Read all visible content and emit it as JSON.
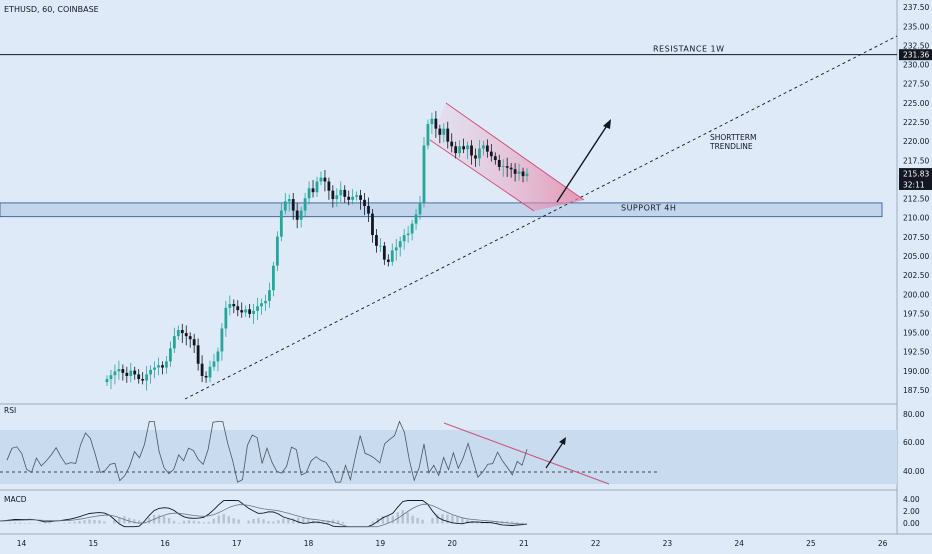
{
  "header": {
    "symbol_line": "ETHUSD, 60, COINBASE"
  },
  "price_axis": {
    "ticks": [
      187.5,
      190.0,
      192.5,
      195.0,
      197.5,
      200.0,
      202.5,
      205.0,
      207.5,
      210.0,
      212.5,
      215.0,
      217.5,
      220.0,
      222.5,
      225.0,
      227.5,
      230.0,
      232.5,
      235.0,
      237.5
    ],
    "badges": [
      {
        "label": "231.36",
        "value": 231.36,
        "color": "#131722",
        "text_color": "#ffffff"
      },
      {
        "label": "215.83",
        "value": 215.83,
        "color": "#131722",
        "text_color": "#ffffff"
      },
      {
        "label": "32:11",
        "value": 214.8,
        "color": "#131722",
        "text_color": "#ffffff"
      }
    ]
  },
  "time_axis": {
    "ticks": [
      "14",
      "15",
      "16",
      "17",
      "18",
      "19",
      "20",
      "21",
      "22",
      "23",
      "24",
      "25",
      "26"
    ]
  },
  "annotations": {
    "resistance": {
      "label": "RESISTANCE 1W",
      "value": 231.36
    },
    "support": {
      "label": "SUPPORT 4H",
      "from": 210.2,
      "to": 212.0
    },
    "trendline": {
      "label_line1": "SHORTTERM",
      "label_line2": "TRENDLINE"
    }
  },
  "rsi": {
    "label": "RSI",
    "ticks": [
      "80.00",
      "60.00",
      "40.00"
    ],
    "band": [
      30,
      70
    ],
    "midline": 40
  },
  "macd": {
    "label": "MACD",
    "ticks": [
      "4.00",
      "2.00",
      "0.00"
    ]
  },
  "colors": {
    "up": "#26a69a",
    "down": "#131722",
    "band": "#c5d6ea",
    "pink": "#e67fa8",
    "line": "#131722"
  },
  "chart_data": {
    "type": "candlestick",
    "price_range": [
      186.0,
      238.5
    ],
    "x_range": [
      13.7,
      26.2
    ],
    "close": [
      189,
      189.5,
      190,
      190.3,
      189.8,
      189.4,
      190.1,
      189.6,
      189,
      188.8,
      189.6,
      190.2,
      190.5,
      190.8,
      190.5,
      191.3,
      193,
      194.6,
      195.4,
      195,
      194.6,
      194.2,
      193.4,
      191,
      189.4,
      189.2,
      190.6,
      191.3,
      192.6,
      195.6,
      198.3,
      198.8,
      198.5,
      198,
      197.7,
      198.1,
      197.5,
      197.9,
      198.5,
      198.9,
      199.2,
      200.6,
      203.8,
      207.6,
      211,
      212.2,
      212.5,
      211,
      209.8,
      211,
      212.6,
      213.9,
      213.4,
      214.8,
      215.3,
      214.8,
      213.6,
      212.5,
      213,
      213.7,
      212.8,
      212.4,
      212.8,
      213,
      212.4,
      211.6,
      210.6,
      207.8,
      206.4,
      206.4,
      204.6,
      204.3,
      205.8,
      206.2,
      207,
      207.8,
      208,
      209.3,
      210.5,
      212,
      219.5,
      222.3,
      223,
      221.7,
      220.9,
      221.7,
      220,
      219.4,
      218.5,
      219.4,
      219,
      219.5,
      218.2,
      217.8,
      219.1,
      219.5,
      218.7,
      218.1,
      217.6,
      216.7,
      216.8,
      216.6,
      216.4,
      215.8,
      216.1,
      215.5,
      215.83
    ]
  }
}
